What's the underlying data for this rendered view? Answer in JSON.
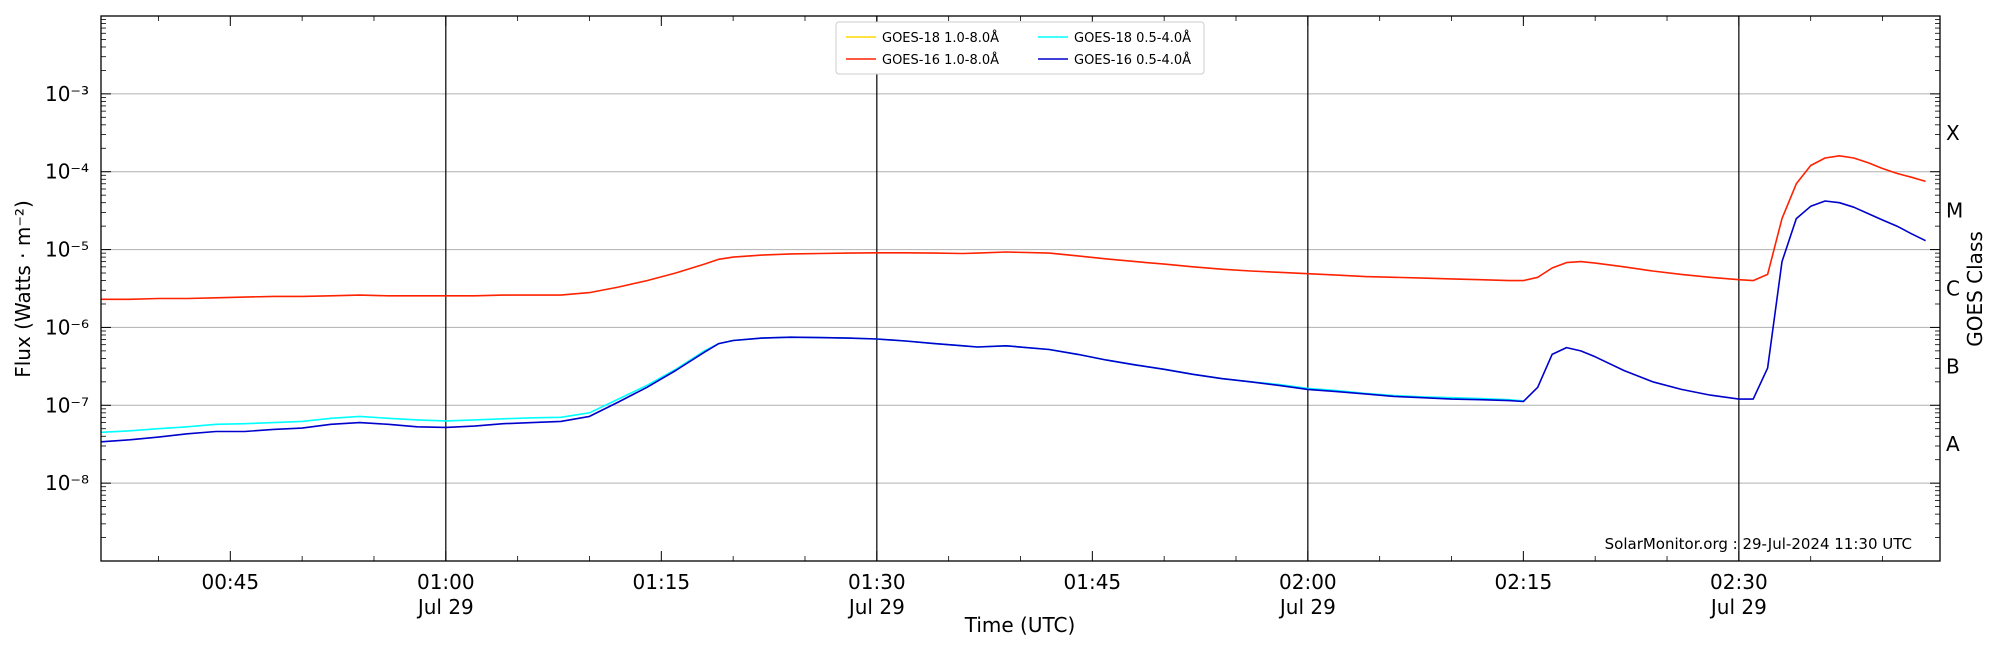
{
  "chart_data": {
    "type": "line",
    "ylabel": "Flux (Watts · m⁻²)",
    "xlabel": "Time (UTC)",
    "y2label": "GOES Class",
    "yscale": "log",
    "ylim": [
      1e-09,
      0.01
    ],
    "xlim": [
      "00:36",
      "02:44"
    ],
    "grid": true,
    "legend_position": "top-center",
    "credit": "SolarMonitor.org : 29-Jul-2024 11:30 UTC",
    "y_ticks": [
      {
        "value": 1e-08,
        "label": "10⁻⁸"
      },
      {
        "value": 1e-07,
        "label": "10⁻⁷"
      },
      {
        "value": 1e-06,
        "label": "10⁻⁶"
      },
      {
        "value": 1e-05,
        "label": "10⁻⁵"
      },
      {
        "value": 0.0001,
        "label": "10⁻⁴"
      },
      {
        "value": 0.001,
        "label": "10⁻³"
      }
    ],
    "x_ticks": [
      {
        "time": "00:45",
        "label": "00:45",
        "sublabel": ""
      },
      {
        "time": "01:00",
        "label": "01:00",
        "sublabel": "Jul 29"
      },
      {
        "time": "01:15",
        "label": "01:15",
        "sublabel": ""
      },
      {
        "time": "01:30",
        "label": "01:30",
        "sublabel": "Jul 29"
      },
      {
        "time": "01:45",
        "label": "01:45",
        "sublabel": ""
      },
      {
        "time": "02:00",
        "label": "02:00",
        "sublabel": "Jul 29"
      },
      {
        "time": "02:15",
        "label": "02:15",
        "sublabel": ""
      },
      {
        "time": "02:30",
        "label": "02:30",
        "sublabel": "Jul 29"
      }
    ],
    "vlines": [
      "01:00",
      "01:30",
      "02:00",
      "02:30"
    ],
    "class_labels": [
      {
        "label": "A",
        "value": 3.16e-08
      },
      {
        "label": "B",
        "value": 3.16e-07
      },
      {
        "label": "C",
        "value": 3.16e-06
      },
      {
        "label": "M",
        "value": 3.16e-05
      },
      {
        "label": "X",
        "value": 0.000316
      }
    ],
    "series": [
      {
        "name": "GOES-18 1.0-8.0Å",
        "color": "#ffd700",
        "x": [],
        "y": []
      },
      {
        "name": "GOES-16 1.0-8.0Å",
        "color": "#ff2200",
        "x": [
          "00:36",
          "00:38",
          "00:40",
          "00:42",
          "00:44",
          "00:46",
          "00:48",
          "00:50",
          "00:52",
          "00:54",
          "00:56",
          "00:58",
          "01:00",
          "01:02",
          "01:04",
          "01:06",
          "01:08",
          "01:10",
          "01:12",
          "01:14",
          "01:16",
          "01:18",
          "01:19",
          "01:20",
          "01:22",
          "01:24",
          "01:26",
          "01:28",
          "01:30",
          "01:32",
          "01:34",
          "01:36",
          "01:37",
          "01:39",
          "01:42",
          "01:44",
          "01:46",
          "01:48",
          "01:50",
          "01:52",
          "01:54",
          "01:56",
          "01:58",
          "02:00",
          "02:02",
          "02:04",
          "02:06",
          "02:08",
          "02:10",
          "02:12",
          "02:14",
          "02:15",
          "02:16",
          "02:17",
          "02:18",
          "02:19",
          "02:20",
          "02:22",
          "02:24",
          "02:26",
          "02:28",
          "02:30",
          "02:31",
          "02:32",
          "02:33",
          "02:34",
          "02:35",
          "02:36",
          "02:37",
          "02:38",
          "02:39",
          "02:40",
          "02:41",
          "02:42",
          "02:43"
        ],
        "y": [
          2.3e-06,
          2.3e-06,
          2.35e-06,
          2.35e-06,
          2.4e-06,
          2.45e-06,
          2.5e-06,
          2.5e-06,
          2.55e-06,
          2.6e-06,
          2.55e-06,
          2.55e-06,
          2.55e-06,
          2.55e-06,
          2.6e-06,
          2.6e-06,
          2.6e-06,
          2.8e-06,
          3.3e-06,
          4e-06,
          5e-06,
          6.5e-06,
          7.5e-06,
          8e-06,
          8.5e-06,
          8.8e-06,
          8.9e-06,
          9e-06,
          9.1e-06,
          9.1e-06,
          9e-06,
          8.9e-06,
          9e-06,
          9.3e-06,
          9e-06,
          8.3e-06,
          7.6e-06,
          7e-06,
          6.5e-06,
          6e-06,
          5.6e-06,
          5.3e-06,
          5.1e-06,
          4.9e-06,
          4.7e-06,
          4.5e-06,
          4.4e-06,
          4.3e-06,
          4.2e-06,
          4.1e-06,
          4e-06,
          4e-06,
          4.4e-06,
          5.8e-06,
          6.8e-06,
          7e-06,
          6.7e-06,
          6e-06,
          5.3e-06,
          4.8e-06,
          4.4e-06,
          4.1e-06,
          4e-06,
          4.8e-06,
          2.5e-05,
          7e-05,
          0.00012,
          0.00015,
          0.00016,
          0.00015,
          0.00013,
          0.00011,
          9.5e-05,
          8.5e-05,
          7.5e-05
        ]
      },
      {
        "name": "GOES-18 0.5-4.0Å",
        "color": "#00ffff",
        "x": [
          "00:36",
          "00:38",
          "00:40",
          "00:42",
          "00:44",
          "00:46",
          "00:48",
          "00:50",
          "00:52",
          "00:54",
          "00:56",
          "00:58",
          "01:00",
          "01:02",
          "01:04",
          "01:06",
          "01:08",
          "01:10",
          "01:12",
          "01:14",
          "01:16",
          "01:18",
          "01:19",
          "01:20",
          "01:22",
          "01:24",
          "01:26",
          "01:28",
          "01:30",
          "01:32",
          "01:34",
          "01:36",
          "01:37",
          "01:39",
          "01:42",
          "01:44",
          "01:46",
          "01:48",
          "01:50",
          "01:52",
          "01:54",
          "01:56",
          "01:58",
          "02:00",
          "02:02",
          "02:04",
          "02:06",
          "02:08",
          "02:10",
          "02:12",
          "02:14",
          "02:15"
        ],
        "y": [
          4.5e-08,
          4.7e-08,
          5e-08,
          5.3e-08,
          5.7e-08,
          5.8e-08,
          6e-08,
          6.2e-08,
          6.8e-08,
          7.2e-08,
          6.8e-08,
          6.5e-08,
          6.3e-08,
          6.5e-08,
          6.7e-08,
          6.9e-08,
          7e-08,
          8e-08,
          1.2e-07,
          1.8e-07,
          2.9e-07,
          5e-07,
          6.2e-07,
          6.8e-07,
          7.3e-07,
          7.5e-07,
          7.4e-07,
          7.3e-07,
          7.1e-07,
          6.7e-07,
          6.2e-07,
          5.8e-07,
          5.6e-07,
          5.8e-07,
          5.2e-07,
          4.5e-07,
          3.8e-07,
          3.3e-07,
          2.9e-07,
          2.5e-07,
          2.2e-07,
          2e-07,
          1.85e-07,
          1.65e-07,
          1.55e-07,
          1.42e-07,
          1.33e-07,
          1.28e-07,
          1.25e-07,
          1.22e-07,
          1.18e-07,
          1.14e-07
        ]
      },
      {
        "name": "GOES-16 0.5-4.0Å",
        "color": "#0000cc",
        "x": [
          "00:36",
          "00:38",
          "00:40",
          "00:42",
          "00:44",
          "00:46",
          "00:48",
          "00:50",
          "00:52",
          "00:54",
          "00:56",
          "00:58",
          "01:00",
          "01:02",
          "01:04",
          "01:06",
          "01:08",
          "01:10",
          "01:12",
          "01:14",
          "01:16",
          "01:18",
          "01:19",
          "01:20",
          "01:22",
          "01:24",
          "01:26",
          "01:28",
          "01:30",
          "01:32",
          "01:34",
          "01:36",
          "01:37",
          "01:39",
          "01:42",
          "01:44",
          "01:46",
          "01:48",
          "01:50",
          "01:52",
          "01:54",
          "01:56",
          "01:58",
          "02:00",
          "02:02",
          "02:04",
          "02:06",
          "02:08",
          "02:10",
          "02:12",
          "02:14",
          "02:15",
          "02:16",
          "02:17",
          "02:18",
          "02:19",
          "02:20",
          "02:22",
          "02:24",
          "02:26",
          "02:28",
          "02:30",
          "02:31",
          "02:32",
          "02:33",
          "02:34",
          "02:35",
          "02:36",
          "02:37",
          "02:38",
          "02:39",
          "02:40",
          "02:41",
          "02:42",
          "02:43"
        ],
        "y": [
          3.4e-08,
          3.6e-08,
          3.9e-08,
          4.3e-08,
          4.6e-08,
          4.6e-08,
          4.9e-08,
          5.1e-08,
          5.7e-08,
          6e-08,
          5.7e-08,
          5.3e-08,
          5.2e-08,
          5.4e-08,
          5.8e-08,
          6e-08,
          6.2e-08,
          7.2e-08,
          1.1e-07,
          1.7e-07,
          2.8e-07,
          4.8e-07,
          6.2e-07,
          6.8e-07,
          7.3e-07,
          7.5e-07,
          7.4e-07,
          7.3e-07,
          7.1e-07,
          6.7e-07,
          6.2e-07,
          5.8e-07,
          5.6e-07,
          5.8e-07,
          5.2e-07,
          4.5e-07,
          3.8e-07,
          3.3e-07,
          2.9e-07,
          2.5e-07,
          2.2e-07,
          2e-07,
          1.8e-07,
          1.6e-07,
          1.5e-07,
          1.4e-07,
          1.3e-07,
          1.25e-07,
          1.2e-07,
          1.18e-07,
          1.15e-07,
          1.12e-07,
          1.7e-07,
          4.5e-07,
          5.5e-07,
          5e-07,
          4.2e-07,
          2.8e-07,
          2e-07,
          1.6e-07,
          1.35e-07,
          1.2e-07,
          1.2e-07,
          3e-07,
          7e-06,
          2.5e-05,
          3.6e-05,
          4.2e-05,
          4e-05,
          3.5e-05,
          2.9e-05,
          2.4e-05,
          2e-05,
          1.6e-05,
          1.3e-05
        ]
      }
    ]
  }
}
